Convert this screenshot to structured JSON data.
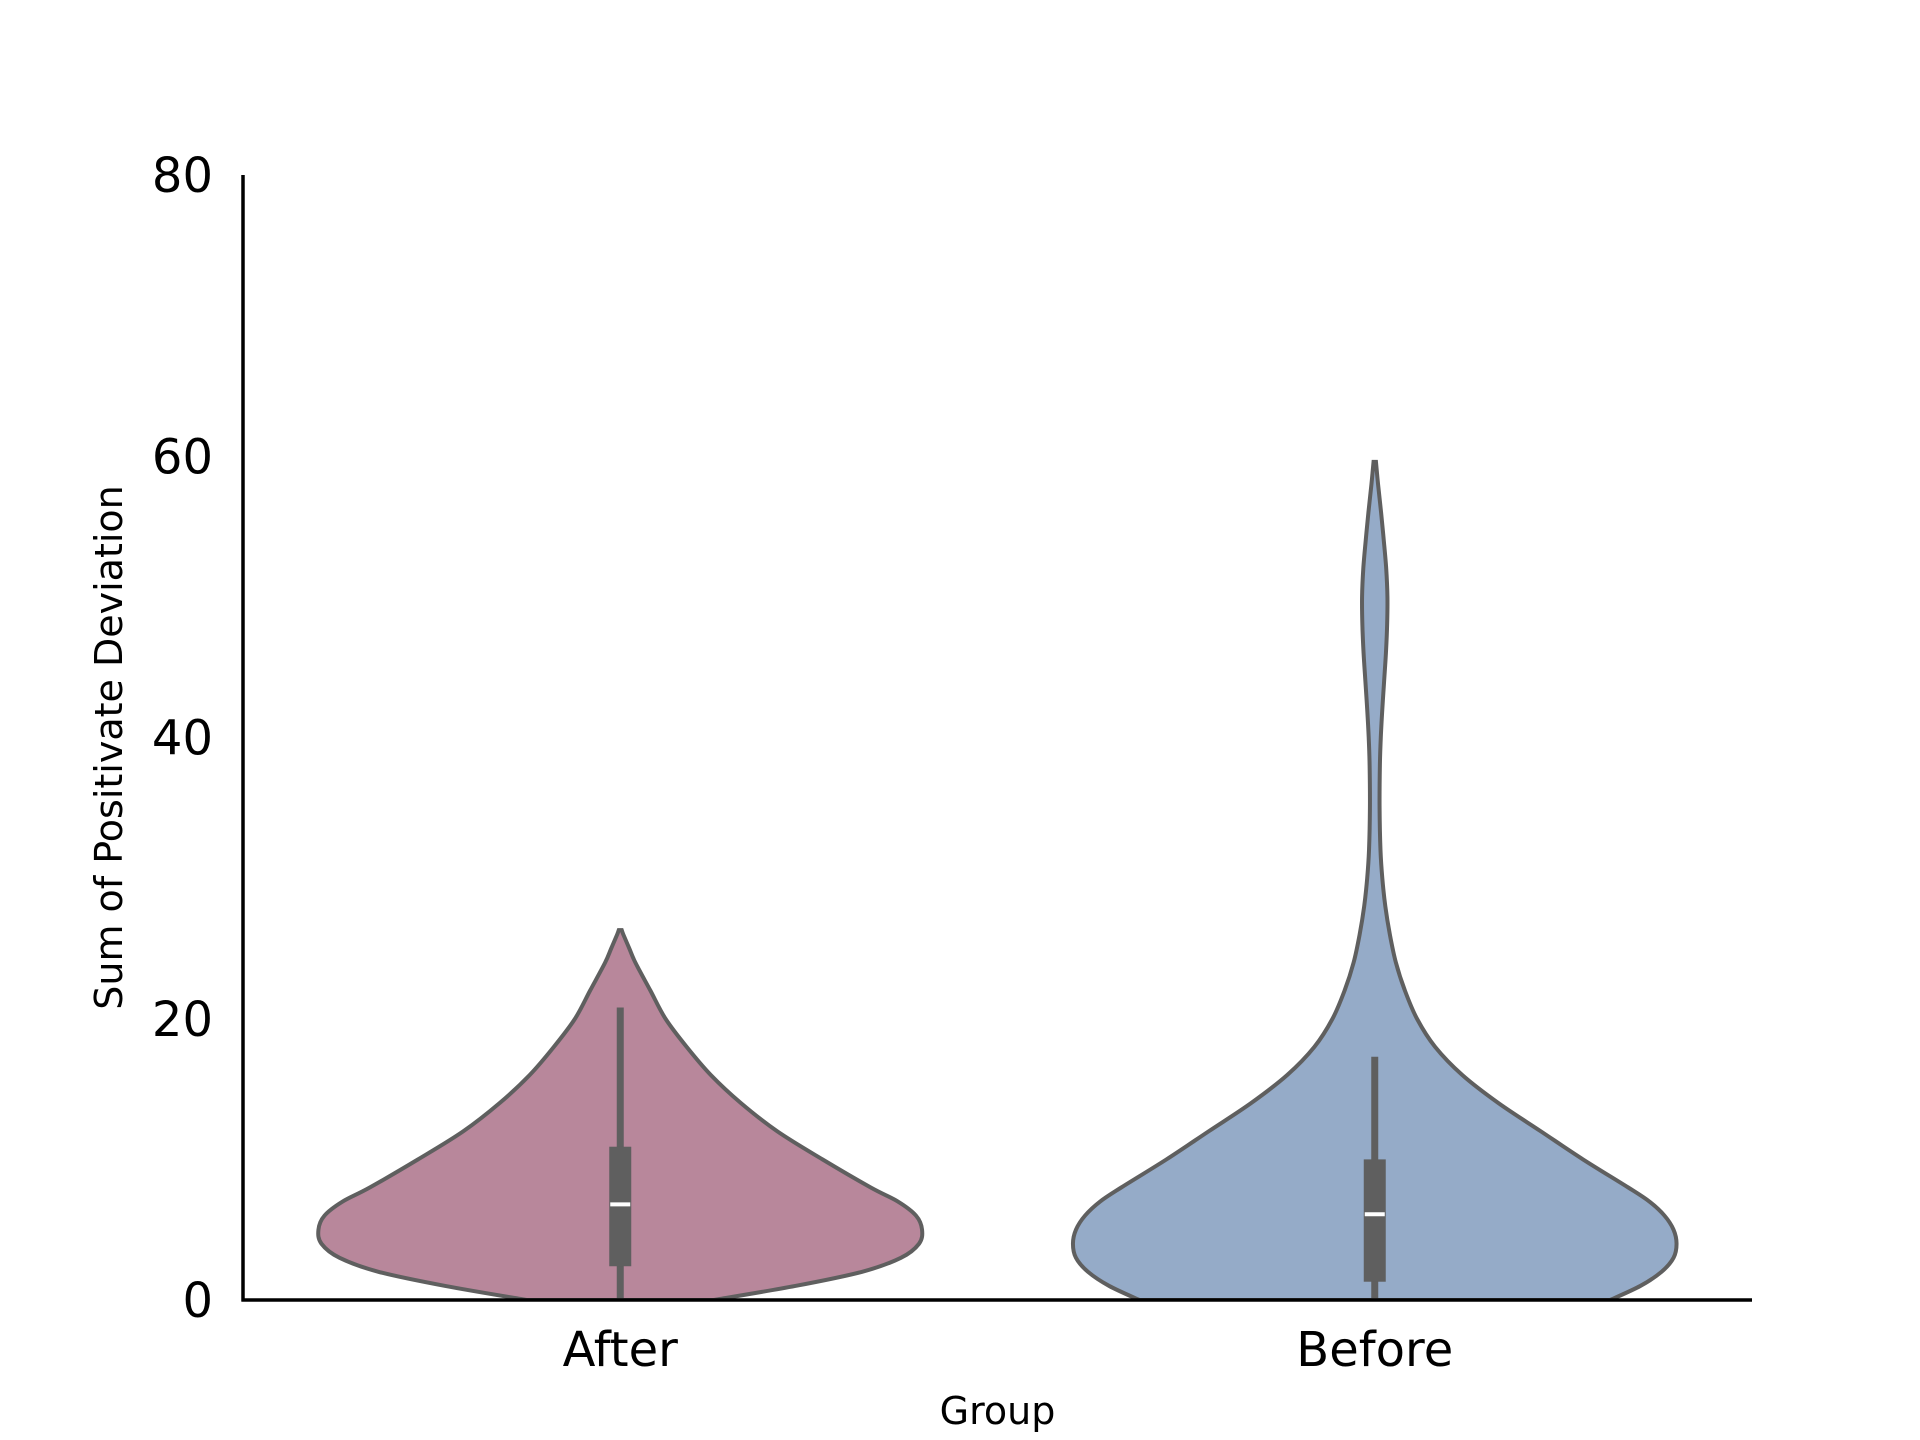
{
  "chart_data": {
    "type": "violin",
    "xlabel": "Group",
    "ylabel": "Sum of Positivate Deviation",
    "ylim": [
      0,
      80
    ],
    "yticks": [
      0,
      20,
      40,
      60,
      80
    ],
    "categories": [
      "After",
      "Before"
    ],
    "grid": false,
    "legend": "none",
    "violins": [
      {
        "category": "After",
        "color": "#b8879b",
        "min": 0,
        "q1": 2.4,
        "median": 6.8,
        "q3": 10.9,
        "whisker_high": 20.8,
        "max": 26.3,
        "density": [
          [
            0,
            0.31
          ],
          [
            1,
            0.58
          ],
          [
            2,
            0.8
          ],
          [
            3,
            0.93
          ],
          [
            4,
            0.99
          ],
          [
            5,
            1.0
          ],
          [
            6,
            0.98
          ],
          [
            7,
            0.92
          ],
          [
            8,
            0.83
          ],
          [
            10,
            0.67
          ],
          [
            12,
            0.52
          ],
          [
            14,
            0.4
          ],
          [
            16,
            0.3
          ],
          [
            18,
            0.22
          ],
          [
            20,
            0.15
          ],
          [
            22,
            0.1
          ],
          [
            24,
            0.05
          ],
          [
            25,
            0.03
          ],
          [
            26,
            0.01
          ],
          [
            26.3,
            0.005
          ]
        ]
      },
      {
        "category": "Before",
        "color": "#95abc8",
        "min": 0,
        "q1": 1.3,
        "median": 6.1,
        "q3": 10.0,
        "whisker_high": 17.3,
        "max": 59.6,
        "density": [
          [
            0,
            0.78
          ],
          [
            1,
            0.88
          ],
          [
            2,
            0.95
          ],
          [
            3,
            0.99
          ],
          [
            4,
            1.0
          ],
          [
            5,
            0.99
          ],
          [
            6,
            0.96
          ],
          [
            7,
            0.91
          ],
          [
            8,
            0.84
          ],
          [
            10,
            0.69
          ],
          [
            12,
            0.55
          ],
          [
            14,
            0.41
          ],
          [
            16,
            0.29
          ],
          [
            18,
            0.2
          ],
          [
            20,
            0.14
          ],
          [
            22,
            0.1
          ],
          [
            24,
            0.07
          ],
          [
            26,
            0.05
          ],
          [
            28,
            0.035
          ],
          [
            30,
            0.025
          ],
          [
            32,
            0.019
          ],
          [
            35,
            0.016
          ],
          [
            38,
            0.017
          ],
          [
            40,
            0.02
          ],
          [
            42,
            0.025
          ],
          [
            44,
            0.031
          ],
          [
            46,
            0.037
          ],
          [
            48,
            0.041
          ],
          [
            50,
            0.042
          ],
          [
            52,
            0.038
          ],
          [
            54,
            0.03
          ],
          [
            56,
            0.021
          ],
          [
            58,
            0.011
          ],
          [
            59.6,
            0.004
          ]
        ]
      }
    ]
  }
}
